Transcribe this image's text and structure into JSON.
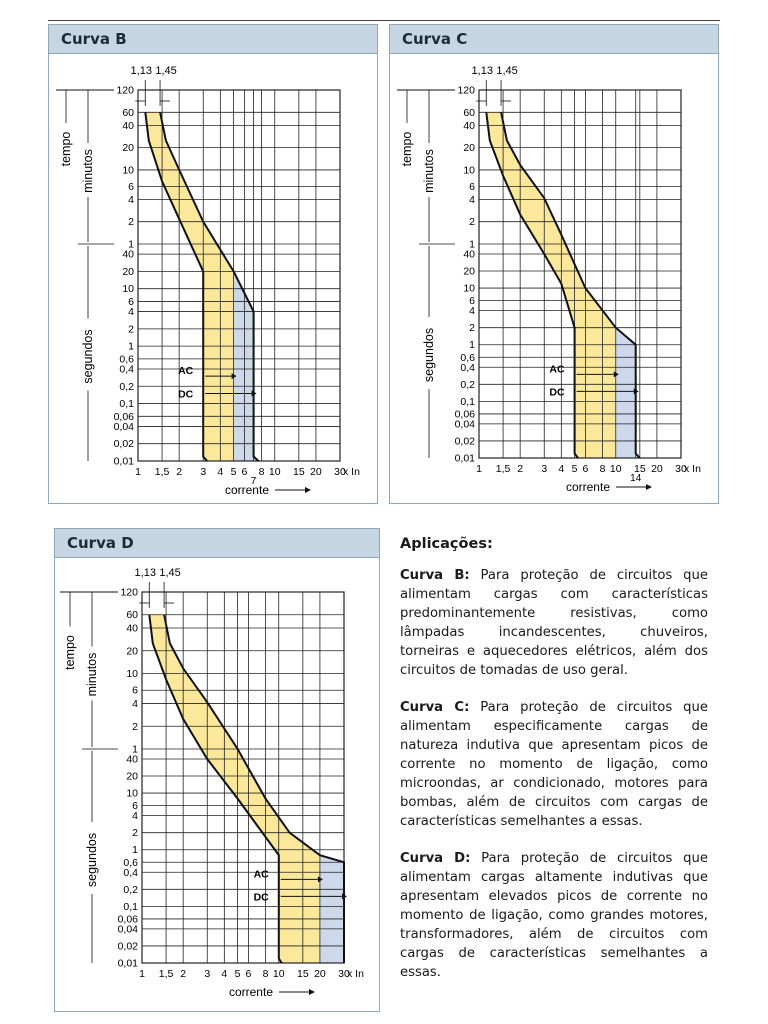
{
  "chart_data": [
    {
      "type": "area",
      "title": "Curva B",
      "xlabel": "corrente",
      "ylabel_top": "tempo",
      "ylabel_minutes": "minutos",
      "ylabel_seconds": "segundos",
      "x_unit": "x In",
      "x_ticks": [
        "1",
        "1,5",
        "2",
        "3",
        "4",
        "5",
        "6",
        "7",
        "8",
        "10",
        "15",
        "20",
        "30"
      ],
      "x_tick_labels": [
        "1",
        "1,5",
        "2",
        "3",
        "4",
        "5",
        "6",
        "8",
        "10",
        "15",
        "20",
        "30"
      ],
      "x_extra_label": "7",
      "y_ticks_minutes": [
        "120",
        "60",
        "40",
        "20",
        "10",
        "6",
        "4",
        "2",
        "1"
      ],
      "y_ticks_seconds": [
        "40",
        "20",
        "10",
        "6",
        "4",
        "2",
        "1",
        "0,6",
        "0,4",
        "0,2",
        "0,1",
        "0,06",
        "0,04",
        "0,02",
        "0,01"
      ],
      "top_labels": [
        "1,13",
        "1,45"
      ],
      "ac_label": "AC",
      "dc_label": "DC",
      "upper_curve": [
        [
          1.45,
          3600
        ],
        [
          1.6,
          1500
        ],
        [
          2,
          600
        ],
        [
          3,
          120
        ],
        [
          4,
          48
        ],
        [
          5,
          20
        ],
        [
          7,
          4
        ],
        [
          7,
          0.012
        ],
        [
          7.6,
          0.01
        ]
      ],
      "lower_curve": [
        [
          1.13,
          3600
        ],
        [
          1.2,
          1500
        ],
        [
          1.5,
          420
        ],
        [
          2,
          130
        ],
        [
          3,
          20
        ],
        [
          3,
          0.012
        ],
        [
          3.2,
          0.01
        ]
      ],
      "ac_limit": 5,
      "dc_limit": 7
    },
    {
      "type": "area",
      "title": "Curva C",
      "xlabel": "corrente",
      "ylabel_top": "tempo",
      "ylabel_minutes": "minutos",
      "ylabel_seconds": "segundos",
      "x_unit": "x In",
      "x_ticks": [
        "1",
        "1,5",
        "2",
        "3",
        "4",
        "5",
        "6",
        "8",
        "10",
        "14",
        "15",
        "20",
        "30"
      ],
      "x_tick_labels": [
        "1",
        "1,5",
        "2",
        "3",
        "4",
        "5",
        "6",
        "8",
        "10",
        "15",
        "20",
        "30"
      ],
      "x_extra_label": "14",
      "y_ticks_minutes": [
        "120",
        "60",
        "40",
        "20",
        "10",
        "6",
        "4",
        "2",
        "1"
      ],
      "y_ticks_seconds": [
        "40",
        "20",
        "10",
        "6",
        "4",
        "2",
        "1",
        "0,6",
        "0,4",
        "0,2",
        "0,1",
        "0,06",
        "0,04",
        "0,02",
        "0,01"
      ],
      "top_labels": [
        "1,13",
        "1,45"
      ],
      "ac_label": "AC",
      "dc_label": "DC",
      "upper_curve": [
        [
          1.45,
          3600
        ],
        [
          1.6,
          1500
        ],
        [
          2,
          700
        ],
        [
          3,
          250
        ],
        [
          4,
          80
        ],
        [
          6,
          10
        ],
        [
          10,
          2
        ],
        [
          14,
          1
        ],
        [
          14,
          0.012
        ],
        [
          15,
          0.01
        ]
      ],
      "lower_curve": [
        [
          1.13,
          3600
        ],
        [
          1.2,
          1500
        ],
        [
          1.5,
          500
        ],
        [
          2,
          150
        ],
        [
          3,
          40
        ],
        [
          4,
          12
        ],
        [
          5,
          2
        ],
        [
          5,
          0.012
        ],
        [
          5.3,
          0.01
        ]
      ],
      "ac_limit": 10,
      "dc_limit": 14
    },
    {
      "type": "area",
      "title": "Curva D",
      "xlabel": "corrente",
      "ylabel_top": "tempo",
      "ylabel_minutes": "minutos",
      "ylabel_seconds": "segundos",
      "x_unit": "x In",
      "x_ticks": [
        "1",
        "1,5",
        "2",
        "3",
        "4",
        "5",
        "6",
        "8",
        "10",
        "15",
        "20",
        "30"
      ],
      "x_tick_labels": [
        "1",
        "1,5",
        "2",
        "3",
        "4",
        "5",
        "6",
        "8",
        "10",
        "15",
        "20",
        "30"
      ],
      "x_extra_label": "",
      "y_ticks_minutes": [
        "120",
        "60",
        "40",
        "20",
        "10",
        "6",
        "4",
        "2",
        "1"
      ],
      "y_ticks_seconds": [
        "40",
        "20",
        "10",
        "6",
        "4",
        "2",
        "1",
        "0,6",
        "0,4",
        "0,2",
        "0,1",
        "0,06",
        "0,04",
        "0,02",
        "0,01"
      ],
      "top_labels": [
        "1,13",
        "1,45"
      ],
      "ac_label": "AC",
      "dc_label": "DC",
      "upper_curve": [
        [
          1.45,
          3600
        ],
        [
          1.6,
          1500
        ],
        [
          2,
          700
        ],
        [
          3,
          250
        ],
        [
          5,
          60
        ],
        [
          8,
          8
        ],
        [
          12,
          2
        ],
        [
          20,
          0.8
        ],
        [
          30,
          0.6
        ],
        [
          30,
          0.01
        ]
      ],
      "lower_curve": [
        [
          1.13,
          3600
        ],
        [
          1.2,
          1500
        ],
        [
          1.5,
          500
        ],
        [
          2,
          150
        ],
        [
          3,
          40
        ],
        [
          5,
          8
        ],
        [
          10,
          0.8
        ],
        [
          10,
          0.012
        ],
        [
          10.5,
          0.01
        ]
      ],
      "ac_limit": 20,
      "dc_limit": 30
    }
  ],
  "colors": {
    "ac_fill": "#fbe89a",
    "dc_fill": "#cdd8ea",
    "header": "#c6d6e3",
    "border": "#8fa7bd",
    "grid": "#222222"
  },
  "applications": {
    "title": "Aplicações:",
    "items": [
      {
        "label": "Curva B:",
        "text": "Para proteção de circuitos que alimentam cargas com características predominantemente resistivas, como lâmpadas incandescentes, chuveiros, torneiras e aquecedores elétricos, além dos circuitos de tomadas de uso geral."
      },
      {
        "label": "Curva C:",
        "text": "Para proteção de circuitos que alimentam especificamente cargas de natureza indutiva que apresentam picos de corrente no momento de ligação, como microondas, ar condicionado, motores para bombas, além de circuitos com cargas de características semelhantes a essas."
      },
      {
        "label": "Curva D:",
        "text": "Para proteção de circuitos que alimentam cargas altamente indutivas que apresentam elevados picos de corrente no momento de ligação, como grandes motores, transformadores, além de circuitos com cargas de características semelhantes a essas."
      }
    ]
  }
}
